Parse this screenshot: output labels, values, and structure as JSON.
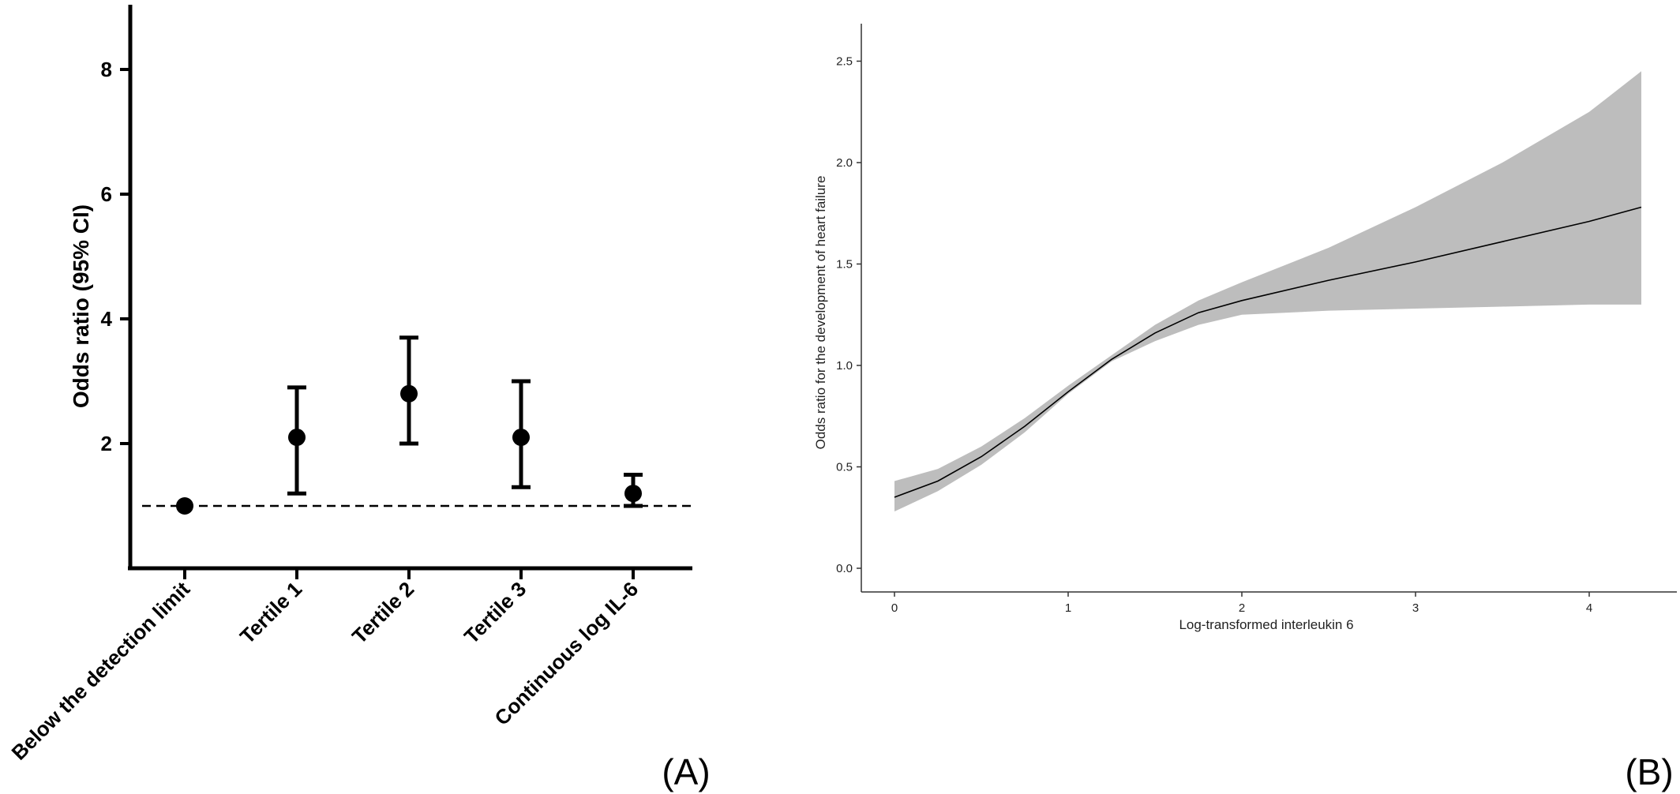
{
  "chart_data": [
    {
      "panel_label": "(A)",
      "type": "scatter",
      "ylabel": "Odds ratio (95%  CI)",
      "xlabel": "",
      "yticks": [
        2,
        4,
        6,
        8
      ],
      "ylim": [
        0,
        9
      ],
      "reference_line": 1,
      "categories": [
        "Below the detection limit",
        "Tertile 1",
        "Tertile 2",
        "Tertile 3",
        "Continuous log IL-6"
      ],
      "points": [
        {
          "category": "Below the detection limit",
          "or": 1.0,
          "lower": null,
          "upper": null
        },
        {
          "category": "Tertile 1",
          "or": 2.1,
          "lower": 1.2,
          "upper": 2.9
        },
        {
          "category": "Tertile 2",
          "or": 2.8,
          "lower": 2.0,
          "upper": 3.7
        },
        {
          "category": "Tertile 3",
          "or": 2.1,
          "lower": 1.3,
          "upper": 3.0
        },
        {
          "category": "Continuous log IL-6",
          "or": 1.2,
          "lower": 1.0,
          "upper": 1.5
        }
      ]
    },
    {
      "panel_label": "(B)",
      "type": "line",
      "xlabel": "Log-transformed interleukin 6",
      "ylabel": "Odds ratio for the development of heart failure",
      "xticks": [
        "0",
        "1",
        "2",
        "3",
        "4"
      ],
      "yticks": [
        "0.0",
        "0.5",
        "1.0",
        "1.5",
        "2.0",
        "2.5"
      ],
      "xlim": [
        -0.2,
        4.5
      ],
      "ylim": [
        -0.07,
        2.6
      ],
      "series": [
        {
          "x": [
            0,
            0.25,
            0.5,
            0.75,
            1.0,
            1.25,
            1.5,
            1.75,
            2.0,
            2.5,
            3.0,
            3.5,
            4.0,
            4.3
          ],
          "y": [
            0.35,
            0.43,
            0.55,
            0.7,
            0.87,
            1.03,
            1.16,
            1.26,
            1.32,
            1.42,
            1.51,
            1.61,
            1.71,
            1.78
          ],
          "lower": [
            0.28,
            0.38,
            0.51,
            0.67,
            0.86,
            1.02,
            1.12,
            1.2,
            1.25,
            1.27,
            1.28,
            1.29,
            1.3,
            1.3
          ],
          "upper": [
            0.43,
            0.49,
            0.6,
            0.74,
            0.9,
            1.05,
            1.2,
            1.32,
            1.41,
            1.58,
            1.78,
            2.0,
            2.25,
            2.45
          ]
        }
      ]
    }
  ]
}
